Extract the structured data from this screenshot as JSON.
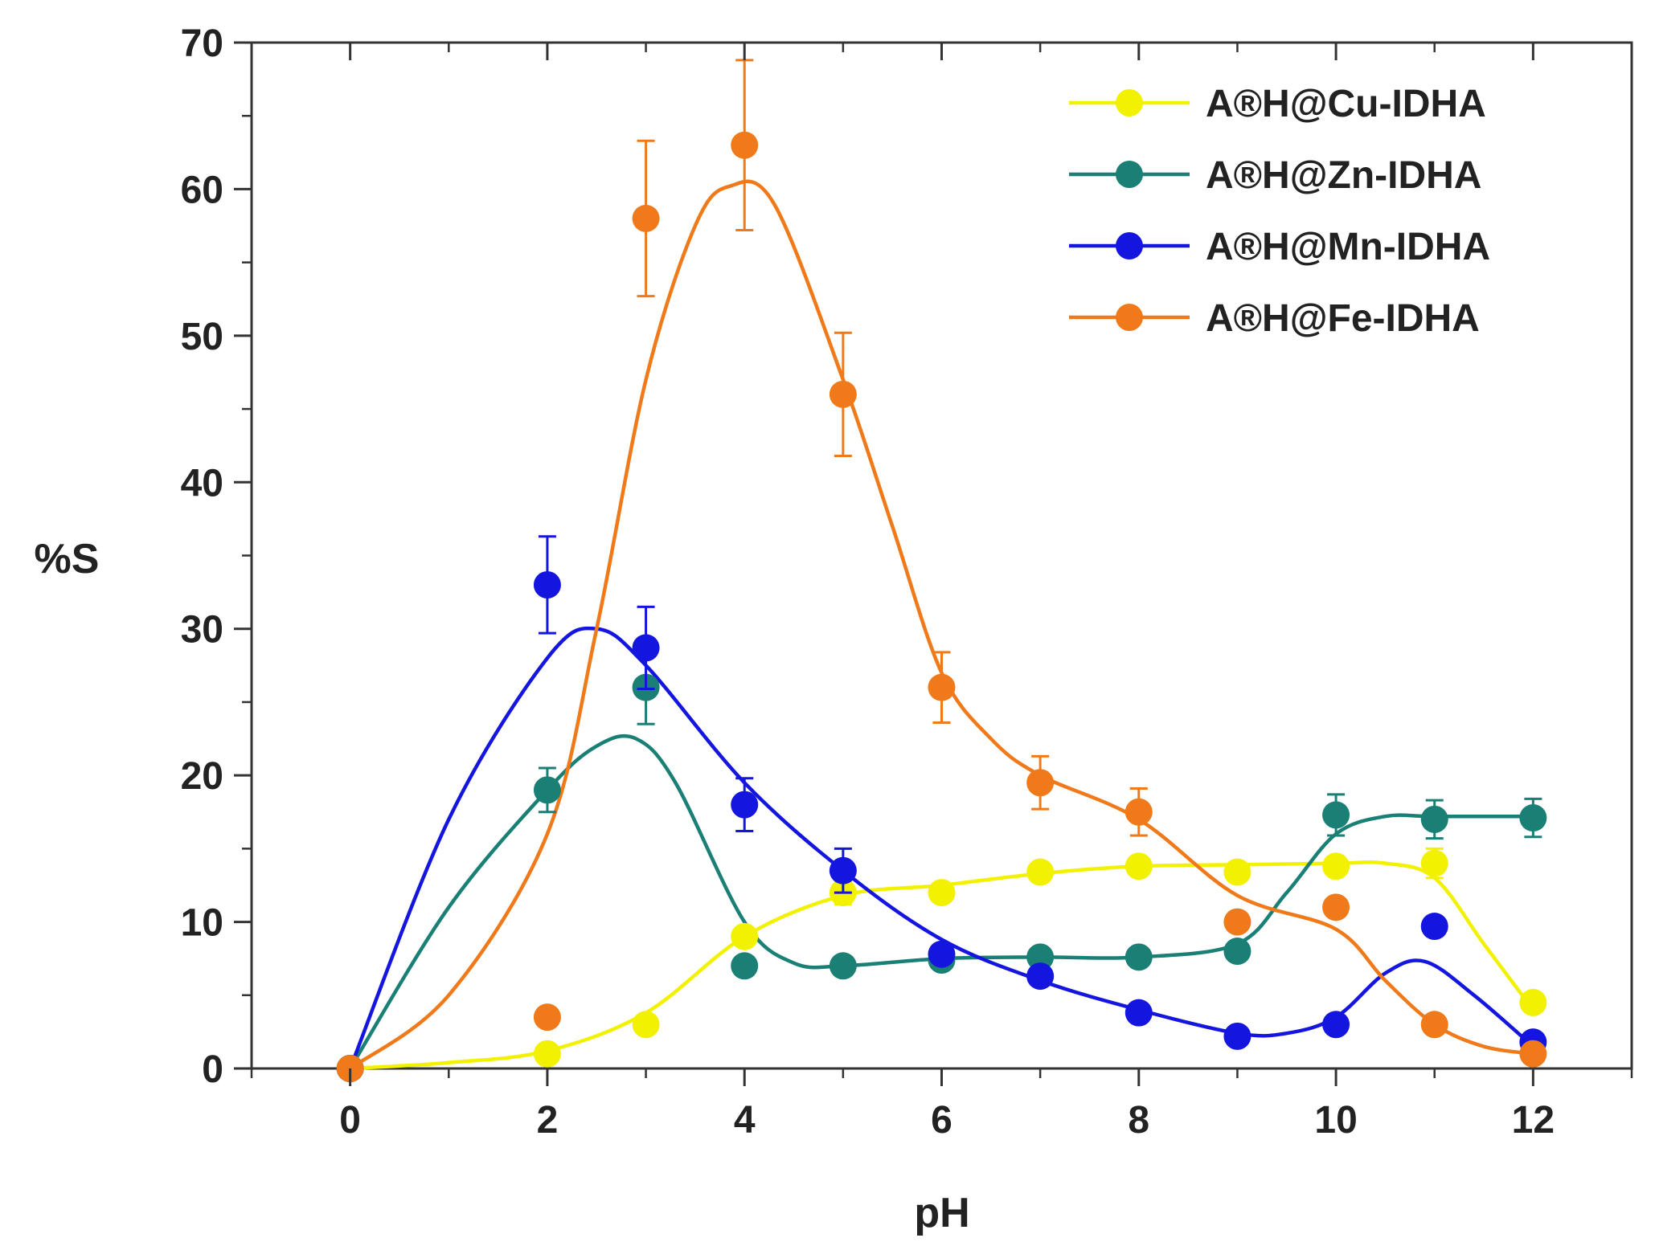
{
  "chart_data": {
    "type": "scatter",
    "title": "",
    "xlabel": "pH",
    "ylabel": "%S",
    "xlim": [
      -1,
      13
    ],
    "ylim": [
      0,
      70
    ],
    "xticks": [
      0,
      2,
      4,
      6,
      8,
      10,
      12
    ],
    "yticks": [
      0,
      10,
      20,
      30,
      40,
      50,
      60,
      70
    ],
    "x_tick_labels": [
      "0",
      "2",
      "4",
      "6",
      "8",
      "10",
      "12"
    ],
    "y_tick_labels": [
      "0",
      "10",
      "20",
      "30",
      "40",
      "50",
      "60",
      "70"
    ],
    "grid": false,
    "legend_position": "top-right",
    "x": [
      0,
      2,
      3,
      4,
      5,
      6,
      7,
      8,
      9,
      10,
      11,
      12
    ],
    "series": [
      {
        "name": "A®H@Cu-IDHA",
        "color": "#f2f200",
        "values": [
          0,
          1,
          3,
          9,
          12,
          12,
          13.4,
          13.8,
          13.4,
          13.8,
          14,
          4.5
        ],
        "errors": [
          0,
          0,
          0,
          0,
          0.8,
          0,
          0,
          0,
          0,
          0,
          1,
          0
        ],
        "curve": [
          [
            0,
            0
          ],
          [
            1,
            0.4
          ],
          [
            2,
            1.2
          ],
          [
            3,
            3.8
          ],
          [
            4,
            9
          ],
          [
            5,
            11.8
          ],
          [
            6,
            12.5
          ],
          [
            7,
            13.3
          ],
          [
            8,
            13.8
          ],
          [
            9,
            13.9
          ],
          [
            10,
            14
          ],
          [
            10.5,
            14
          ],
          [
            11,
            13
          ],
          [
            11.5,
            8.5
          ],
          [
            12,
            4
          ]
        ]
      },
      {
        "name": "A®H@Zn-IDHA",
        "color": "#1a7f74",
        "values": [
          0,
          19,
          26,
          7,
          7,
          7.4,
          7.6,
          7.6,
          8,
          17.3,
          17,
          17.1
        ],
        "errors": [
          0,
          1.5,
          2.5,
          0,
          0,
          0,
          0,
          0,
          0,
          1.4,
          1.3,
          1.3
        ],
        "curve": [
          [
            0,
            0
          ],
          [
            1,
            11
          ],
          [
            2,
            19
          ],
          [
            2.5,
            22
          ],
          [
            2.9,
            22.5
          ],
          [
            3.3,
            19.5
          ],
          [
            4,
            10
          ],
          [
            4.5,
            7.2
          ],
          [
            5,
            7
          ],
          [
            6,
            7.5
          ],
          [
            7,
            7.6
          ],
          [
            8,
            7.6
          ],
          [
            9,
            8.5
          ],
          [
            9.5,
            12
          ],
          [
            10,
            16
          ],
          [
            10.5,
            17.2
          ],
          [
            11,
            17.2
          ],
          [
            12,
            17.2
          ]
        ]
      },
      {
        "name": "A®H@Mn-IDHA",
        "color": "#1515e0",
        "values": [
          0,
          33,
          28.7,
          18,
          13.5,
          7.8,
          6.3,
          3.8,
          2.2,
          3,
          9.7,
          1.8
        ],
        "errors": [
          0,
          3.3,
          2.8,
          1.8,
          1.5,
          0,
          0,
          0,
          0,
          0,
          0,
          0
        ],
        "curve": [
          [
            0,
            0
          ],
          [
            1,
            17
          ],
          [
            2,
            28
          ],
          [
            2.5,
            30
          ],
          [
            3,
            27.5
          ],
          [
            4,
            19.5
          ],
          [
            5,
            13.5
          ],
          [
            6,
            8.8
          ],
          [
            7,
            6
          ],
          [
            8,
            4
          ],
          [
            9,
            2.4
          ],
          [
            9.5,
            2.4
          ],
          [
            10,
            3.5
          ],
          [
            10.5,
            6.5
          ],
          [
            10.9,
            7.3
          ],
          [
            11.4,
            5
          ],
          [
            12,
            1.5
          ]
        ]
      },
      {
        "name": "A®H@Fe-IDHA",
        "color": "#f07a1a",
        "values": [
          0,
          3.5,
          58,
          63,
          46,
          26,
          19.5,
          17.5,
          10,
          11,
          3,
          1
        ],
        "errors": [
          0,
          0,
          5.3,
          5.8,
          4.2,
          2.4,
          1.8,
          1.6,
          0,
          0,
          0,
          0
        ],
        "curve": [
          [
            0,
            0
          ],
          [
            1,
            5
          ],
          [
            2,
            16
          ],
          [
            2.5,
            30
          ],
          [
            3,
            47
          ],
          [
            3.5,
            57.5
          ],
          [
            3.85,
            60.2
          ],
          [
            4.3,
            59
          ],
          [
            5,
            47
          ],
          [
            5.5,
            37
          ],
          [
            6,
            27
          ],
          [
            6.5,
            22.5
          ],
          [
            7,
            20
          ],
          [
            8,
            17
          ],
          [
            9,
            11.8
          ],
          [
            10,
            9.5
          ],
          [
            10.5,
            6
          ],
          [
            11,
            3
          ],
          [
            11.5,
            1.5
          ],
          [
            12,
            1
          ]
        ]
      }
    ]
  }
}
